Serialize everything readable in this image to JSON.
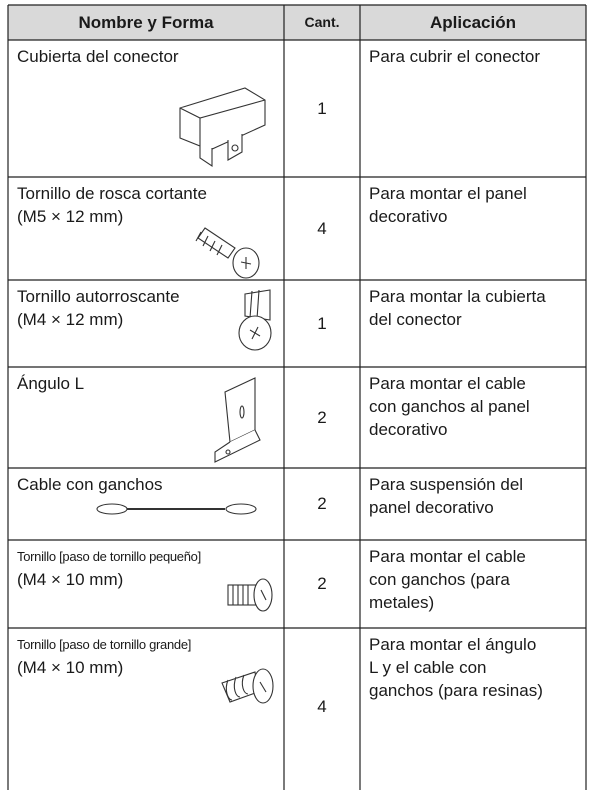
{
  "table": {
    "header": [
      "Nombre y Forma",
      "Cant.",
      "Aplicación"
    ],
    "rows": [
      {
        "name": [
          "Cubierta del conector"
        ],
        "quantity": 1,
        "application": [
          "Para cubrir el conector"
        ]
      },
      {
        "name": [
          "Tornillo de rosca cortante",
          "(M5 × 12 mm)"
        ],
        "quantity": 4,
        "application": [
          "Para montar el panel",
          "decorativo"
        ]
      },
      {
        "name": [
          "Tornillo autorroscante",
          "(M4 × 12 mm)"
        ],
        "quantity": 1,
        "application": [
          "Para montar la cubierta",
          "del conector"
        ]
      },
      {
        "name": [
          "Ángulo L"
        ],
        "quantity": 2,
        "application": [
          "Para montar el cable",
          "con ganchos al panel",
          "decorativo"
        ]
      },
      {
        "name": [
          "Cable con ganchos"
        ],
        "quantity": 2,
        "application": [
          "Para suspensión del",
          "panel decorativo"
        ]
      },
      {
        "name": [
          "Tornillo [paso de tornillo pequeño]",
          "(M4 × 10 mm)"
        ],
        "quantity": 2,
        "application": [
          "Para montar el cable",
          "con ganchos (para",
          "metales)"
        ]
      },
      {
        "name": [
          "Tornillo [paso de tornillo grande]",
          "(M4 × 10 mm)"
        ],
        "quantity": 4,
        "application": [
          "Para montar el ángulo",
          "L y el cable con",
          "ganchos (para resinas)"
        ]
      }
    ]
  }
}
